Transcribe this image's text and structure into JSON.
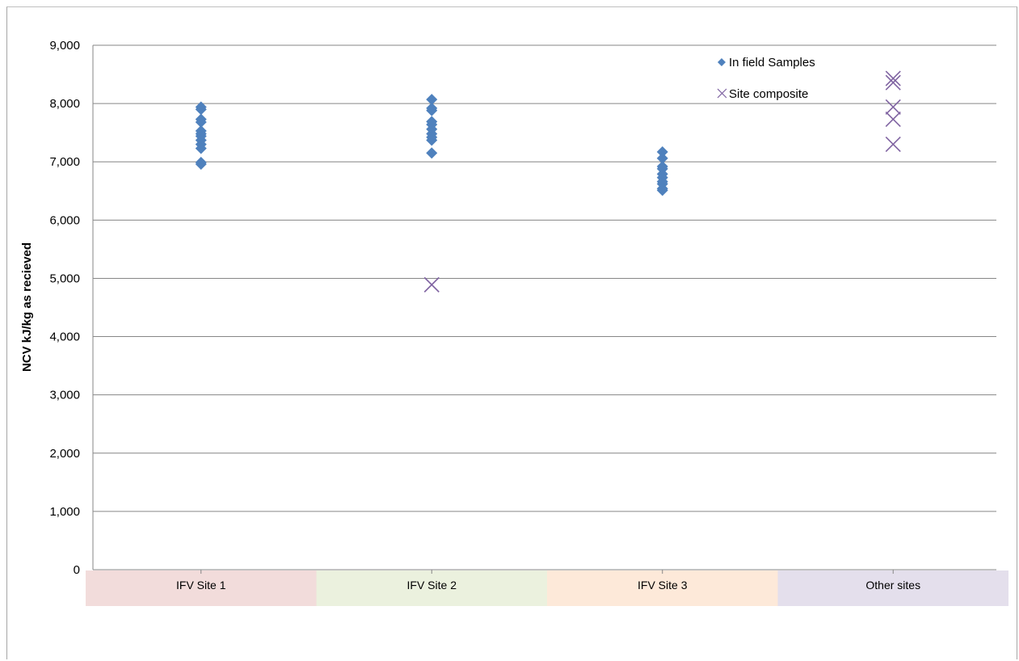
{
  "chart_data": {
    "type": "scatter",
    "title": "",
    "xlabel": "",
    "ylabel": "NCV kJ/kg as recieved",
    "ylim": [
      0,
      9000
    ],
    "yticks": [
      0,
      1000,
      2000,
      3000,
      4000,
      5000,
      6000,
      7000,
      8000,
      9000
    ],
    "ytick_labels": [
      "0",
      "1,000",
      "2,000",
      "3,000",
      "4,000",
      "5,000",
      "6,000",
      "7,000",
      "8,000",
      "9,000"
    ],
    "grid": true,
    "legend_position": "top-right",
    "categories": [
      "IFV Site 1",
      "IFV Site 2",
      "IFV Site 3",
      "Other sites"
    ],
    "category_colors": [
      "#f2dcdb",
      "#ebf1de",
      "#fde9d9",
      "#e4dfec"
    ],
    "series": [
      {
        "name": "In field Samples",
        "marker": "diamond",
        "color": "#4f81bd",
        "points": [
          {
            "category": "IFV Site 1",
            "y": 7940
          },
          {
            "category": "IFV Site 1",
            "y": 7900
          },
          {
            "category": "IFV Site 1",
            "y": 7730
          },
          {
            "category": "IFV Site 1",
            "y": 7680
          },
          {
            "category": "IFV Site 1",
            "y": 7530
          },
          {
            "category": "IFV Site 1",
            "y": 7480
          },
          {
            "category": "IFV Site 1",
            "y": 7440
          },
          {
            "category": "IFV Site 1",
            "y": 7370
          },
          {
            "category": "IFV Site 1",
            "y": 7300
          },
          {
            "category": "IFV Site 1",
            "y": 7230
          },
          {
            "category": "IFV Site 1",
            "y": 6990
          },
          {
            "category": "IFV Site 1",
            "y": 6960
          },
          {
            "category": "IFV Site 2",
            "y": 8070
          },
          {
            "category": "IFV Site 2",
            "y": 7920
          },
          {
            "category": "IFV Site 2",
            "y": 7880
          },
          {
            "category": "IFV Site 2",
            "y": 7690
          },
          {
            "category": "IFV Site 2",
            "y": 7640
          },
          {
            "category": "IFV Site 2",
            "y": 7560
          },
          {
            "category": "IFV Site 2",
            "y": 7480
          },
          {
            "category": "IFV Site 2",
            "y": 7420
          },
          {
            "category": "IFV Site 2",
            "y": 7370
          },
          {
            "category": "IFV Site 2",
            "y": 7150
          },
          {
            "category": "IFV Site 3",
            "y": 7170
          },
          {
            "category": "IFV Site 3",
            "y": 7060
          },
          {
            "category": "IFV Site 3",
            "y": 6920
          },
          {
            "category": "IFV Site 3",
            "y": 6880
          },
          {
            "category": "IFV Site 3",
            "y": 6790
          },
          {
            "category": "IFV Site 3",
            "y": 6730
          },
          {
            "category": "IFV Site 3",
            "y": 6660
          },
          {
            "category": "IFV Site 3",
            "y": 6620
          },
          {
            "category": "IFV Site 3",
            "y": 6540
          },
          {
            "category": "IFV Site 3",
            "y": 6510
          }
        ]
      },
      {
        "name": "Site composite",
        "marker": "x",
        "color": "#8064a2",
        "points": [
          {
            "category": "IFV Site 2",
            "y": 4890
          },
          {
            "category": "Other sites",
            "y": 8430
          },
          {
            "category": "Other sites",
            "y": 8360
          },
          {
            "category": "Other sites",
            "y": 7940
          },
          {
            "category": "Other sites",
            "y": 7730
          },
          {
            "category": "Other sites",
            "y": 7300
          }
        ]
      }
    ]
  }
}
